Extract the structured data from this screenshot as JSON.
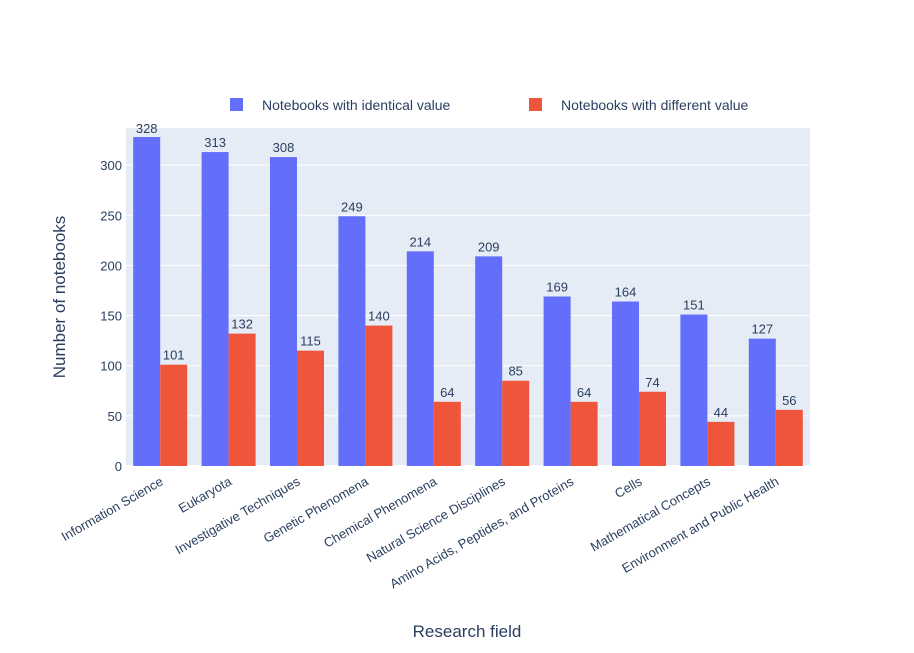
{
  "chart_data": {
    "type": "bar",
    "title": "",
    "xlabel": "Research field",
    "ylabel": "Number of notebooks",
    "ylim": [
      0,
      337
    ],
    "yticks": [
      0,
      50,
      100,
      150,
      200,
      250,
      300
    ],
    "grid": true,
    "legend_position": "top-right",
    "categories": [
      "Information Science",
      "Eukaryota",
      "Investigative Techniques",
      "Genetic Phenomena",
      "Chemical Phenomena",
      "Natural Science Disciplines",
      "Amino Acids, Peptides, and Proteins",
      "Cells",
      "Mathematical Concepts",
      "Environment and Public Health"
    ],
    "series": [
      {
        "name": "Notebooks with identical value",
        "color": "#636efa",
        "values": [
          328,
          313,
          308,
          249,
          214,
          209,
          169,
          164,
          151,
          127
        ]
      },
      {
        "name": "Notebooks with different value",
        "color": "#ef553b",
        "values": [
          101,
          132,
          115,
          140,
          64,
          85,
          64,
          74,
          44,
          56
        ]
      }
    ],
    "plot_bg": "#e5ecf6",
    "text_color": "#2a3f5f"
  }
}
